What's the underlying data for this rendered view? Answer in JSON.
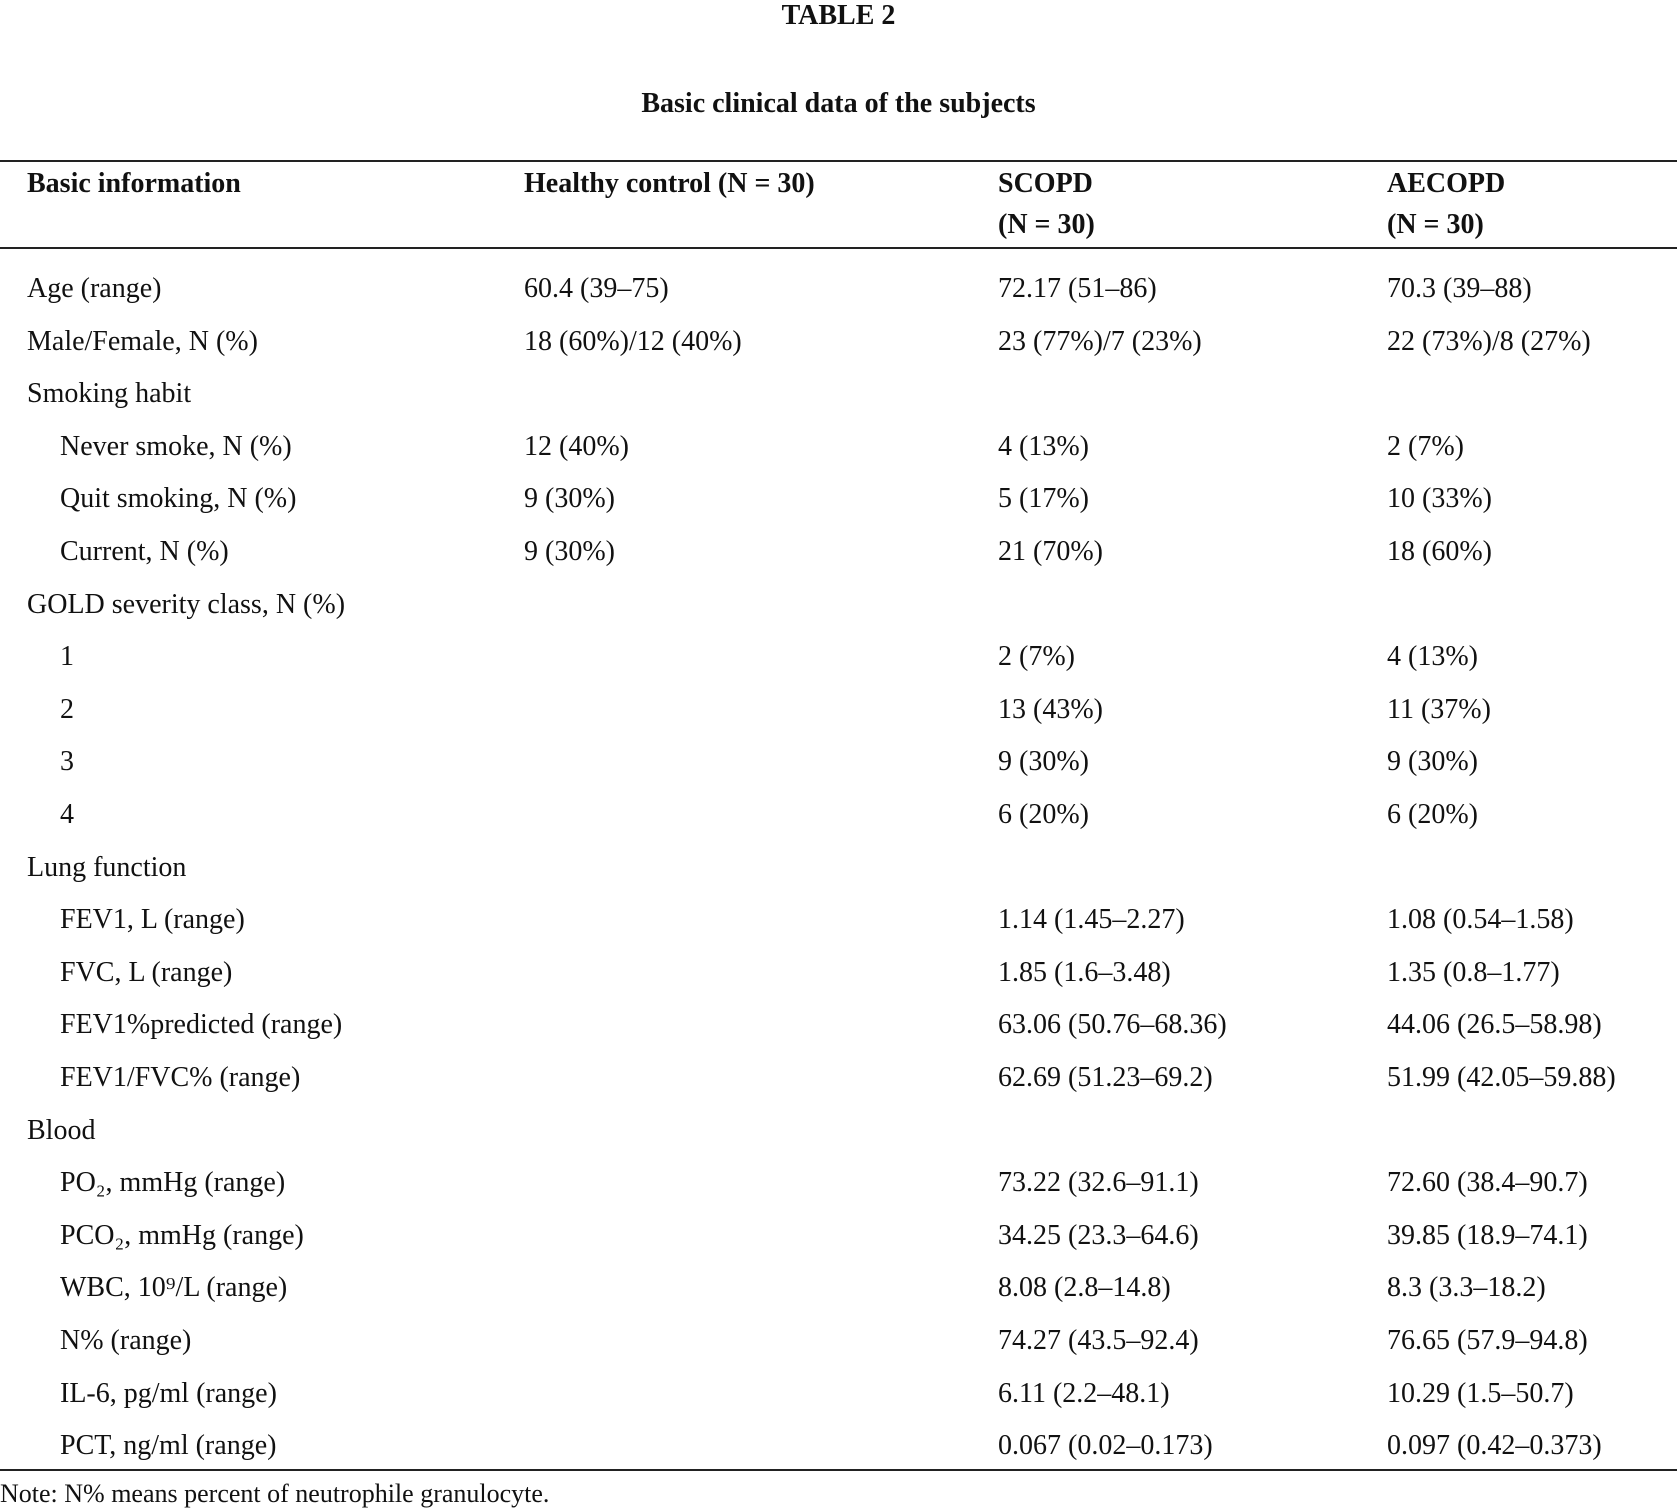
{
  "title": "TABLE 2",
  "subtitle": "Basic clinical data of the subjects",
  "table": {
    "header": [
      [
        "Basic information"
      ],
      [
        "Healthy control (N = 30)"
      ],
      [
        "SCOPD",
        "(N = 30)"
      ],
      [
        "AECOPD",
        "(N = 30)"
      ]
    ],
    "rows": [
      [
        "Age (range)",
        "60.4 (39–75)",
        "72.17 (51–86)",
        "70.3 (39–88)"
      ],
      [
        "Male/Female, N (%)",
        "18 (60%)/12 (40%)",
        "23 (77%)/7 (23%)",
        "22 (73%)/8 (27%)"
      ],
      [
        "Smoking habit",
        null,
        null,
        null
      ],
      [
        "Never smoke, N (%)",
        "12 (40%)",
        "4 (13%)",
        "2 (7%)"
      ],
      [
        "Quit smoking, N (%)",
        "9 (30%)",
        "5 (17%)",
        "10 (33%)"
      ],
      [
        "Current, N (%)",
        "9 (30%)",
        "21 (70%)",
        "18 (60%)"
      ],
      [
        "GOLD severity class, N (%)",
        null,
        null,
        null
      ],
      [
        "1",
        null,
        "2 (7%)",
        "4 (13%)"
      ],
      [
        "2",
        null,
        "13 (43%)",
        "11 (37%)"
      ],
      [
        "3",
        null,
        "9 (30%)",
        "9 (30%)"
      ],
      [
        "4",
        null,
        "6 (20%)",
        "6 (20%)"
      ],
      [
        "Lung function",
        null,
        null,
        null
      ],
      [
        "FEV1, L (range)",
        null,
        "1.14 (1.45–2.27)",
        "1.08 (0.54–1.58)"
      ],
      [
        "FVC, L (range)",
        null,
        "1.85 (1.6–3.48)",
        "1.35 (0.8–1.77)"
      ],
      [
        "FEV1%predicted (range)",
        null,
        "63.06 (50.76–68.36)",
        "44.06 (26.5–58.98)"
      ],
      [
        "FEV1/FVC% (range)",
        null,
        "62.69 (51.23–69.2)",
        "51.99 (42.05–59.88)"
      ],
      [
        "Blood",
        null,
        null,
        null
      ],
      [
        "PO₂, mmHg (range)",
        null,
        "73.22 (32.6–91.1)",
        "72.60 (38.4–90.7)"
      ],
      [
        "PCO₂, mmHg (range)",
        null,
        "34.25 (23.3–64.6)",
        "39.85 (18.9–74.1)"
      ],
      [
        "WBC, 10⁹/L (range)",
        null,
        "8.08 (2.8–14.8)",
        "8.3 (3.3–18.2)"
      ],
      [
        "N% (range)",
        null,
        "74.27 (43.5–92.4)",
        "76.65 (57.9–94.8)"
      ],
      [
        "IL-6, pg/ml (range)",
        null,
        "6.11 (2.2–48.1)",
        "10.29 (1.5–50.7)"
      ],
      [
        "PCT, ng/ml (range)",
        null,
        "0.067 (0.02–0.173)",
        "0.097 (0.42–0.373)"
      ]
    ]
  },
  "note": "Note: N% means percent of neutrophile granulocyte."
}
